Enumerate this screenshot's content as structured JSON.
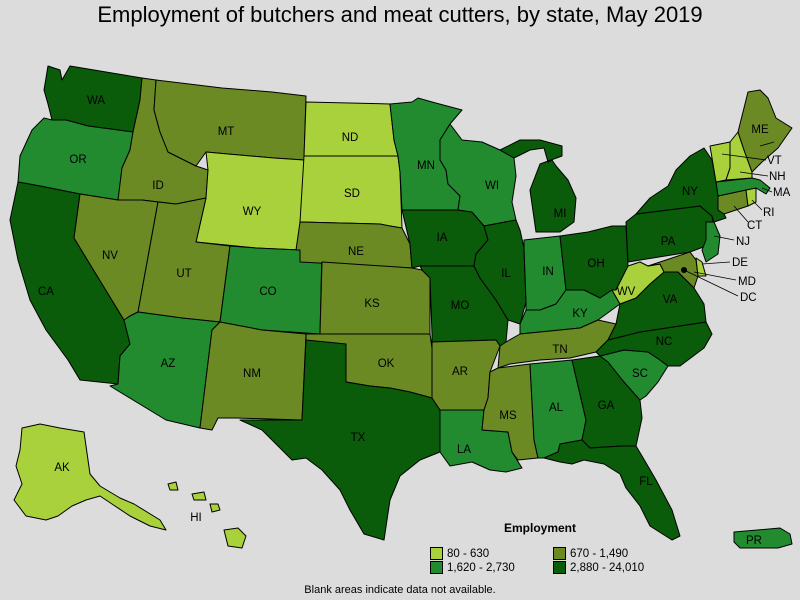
{
  "title": "Employment of butchers and meat cutters, by state, May 2019",
  "legend": {
    "title": "Employment",
    "classes": [
      {
        "label": "80 - 630",
        "color": "#a8d13c"
      },
      {
        "label": "670 - 1,490",
        "color": "#6b8a24"
      },
      {
        "label": "1,620 - 2,730",
        "color": "#228b2f"
      },
      {
        "label": "2,880 - 24,010",
        "color": "#0a5c0a"
      }
    ]
  },
  "footnote": "Blank areas indicate data not available.",
  "states": [
    {
      "abbr": "WA",
      "class": 3
    },
    {
      "abbr": "OR",
      "class": 2
    },
    {
      "abbr": "CA",
      "class": 3
    },
    {
      "abbr": "ID",
      "class": 1
    },
    {
      "abbr": "NV",
      "class": 1
    },
    {
      "abbr": "MT",
      "class": 1
    },
    {
      "abbr": "WY",
      "class": 0
    },
    {
      "abbr": "UT",
      "class": 1
    },
    {
      "abbr": "AZ",
      "class": 2
    },
    {
      "abbr": "CO",
      "class": 2
    },
    {
      "abbr": "NM",
      "class": 1
    },
    {
      "abbr": "ND",
      "class": 0
    },
    {
      "abbr": "SD",
      "class": 0
    },
    {
      "abbr": "NE",
      "class": 1
    },
    {
      "abbr": "KS",
      "class": 1
    },
    {
      "abbr": "OK",
      "class": 1
    },
    {
      "abbr": "TX",
      "class": 3
    },
    {
      "abbr": "MN",
      "class": 2
    },
    {
      "abbr": "IA",
      "class": 3
    },
    {
      "abbr": "MO",
      "class": 3
    },
    {
      "abbr": "AR",
      "class": 1
    },
    {
      "abbr": "LA",
      "class": 2
    },
    {
      "abbr": "WI",
      "class": 2
    },
    {
      "abbr": "IL",
      "class": 3
    },
    {
      "abbr": "MI",
      "class": 3
    },
    {
      "abbr": "IN",
      "class": 2
    },
    {
      "abbr": "OH",
      "class": 3
    },
    {
      "abbr": "KY",
      "class": 2
    },
    {
      "abbr": "TN",
      "class": 1
    },
    {
      "abbr": "MS",
      "class": 1
    },
    {
      "abbr": "AL",
      "class": 2
    },
    {
      "abbr": "GA",
      "class": 3
    },
    {
      "abbr": "FL",
      "class": 3
    },
    {
      "abbr": "SC",
      "class": 2
    },
    {
      "abbr": "NC",
      "class": 3
    },
    {
      "abbr": "VA",
      "class": 3
    },
    {
      "abbr": "WV",
      "class": 0
    },
    {
      "abbr": "PA",
      "class": 3
    },
    {
      "abbr": "NY",
      "class": 3
    },
    {
      "abbr": "VT",
      "class": 0
    },
    {
      "abbr": "NH",
      "class": 0
    },
    {
      "abbr": "ME",
      "class": 1
    },
    {
      "abbr": "MA",
      "class": 2
    },
    {
      "abbr": "RI",
      "class": 0
    },
    {
      "abbr": "CT",
      "class": 1
    },
    {
      "abbr": "NJ",
      "class": 2
    },
    {
      "abbr": "DE",
      "class": 0
    },
    {
      "abbr": "MD",
      "class": 1
    },
    {
      "abbr": "DC",
      "class": 3
    },
    {
      "abbr": "AK",
      "class": 0
    },
    {
      "abbr": "HI",
      "class": 0
    },
    {
      "abbr": "PR",
      "class": 2
    }
  ]
}
